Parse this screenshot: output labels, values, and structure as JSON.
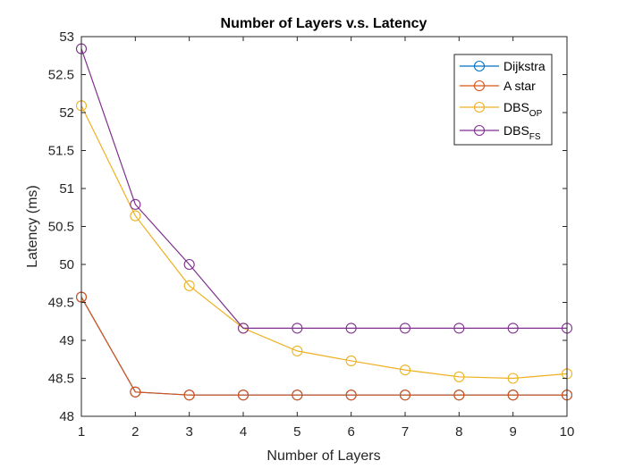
{
  "chart_data": {
    "type": "line",
    "title": "Number of Layers v.s. Latency",
    "xlabel": "Number of Layers",
    "ylabel": "Latency (ms)",
    "x": [
      1,
      2,
      3,
      4,
      5,
      6,
      7,
      8,
      9,
      10
    ],
    "xlim": [
      1,
      10
    ],
    "ylim": [
      48,
      53
    ],
    "xticks": [
      "1",
      "2",
      "3",
      "4",
      "5",
      "6",
      "7",
      "8",
      "9",
      "10"
    ],
    "yticks": [
      "48",
      "48.5",
      "49",
      "49.5",
      "50",
      "50.5",
      "51",
      "51.5",
      "52",
      "52.5",
      "53"
    ],
    "grid": false,
    "legend_position": "top-right",
    "marker": "circle",
    "series": [
      {
        "name": "Dijkstra",
        "base": "Dijkstra",
        "sub": "",
        "color": "#0072BD",
        "values": [
          49.57,
          48.32,
          48.28,
          48.28,
          48.28,
          48.28,
          48.28,
          48.28,
          48.28,
          48.28
        ]
      },
      {
        "name": "A star",
        "base": "A star",
        "sub": "",
        "color": "#D95319",
        "values": [
          49.57,
          48.32,
          48.28,
          48.28,
          48.28,
          48.28,
          48.28,
          48.28,
          48.28,
          48.28
        ]
      },
      {
        "name": "DBSOP",
        "base": "DBS",
        "sub": "OP",
        "color": "#EDB120",
        "values": [
          52.09,
          50.64,
          49.72,
          49.16,
          48.86,
          48.73,
          48.61,
          48.52,
          48.5,
          48.56
        ]
      },
      {
        "name": "DBSFS",
        "base": "DBS",
        "sub": "FS",
        "color": "#7E2F8E",
        "values": [
          52.84,
          50.79,
          50.0,
          49.16,
          49.16,
          49.16,
          49.16,
          49.16,
          49.16,
          49.16
        ]
      }
    ]
  }
}
